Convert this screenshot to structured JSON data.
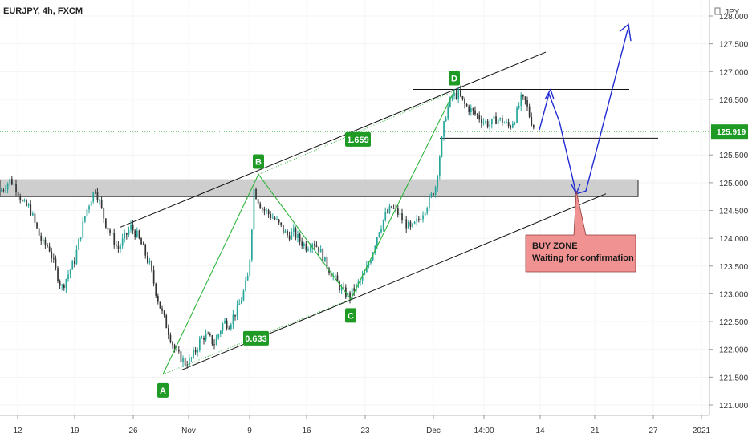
{
  "header": {
    "symbol_title": "EURJPY, 4h, FXCM",
    "currency": "JPY"
  },
  "chart_data": {
    "type": "candlestick",
    "symbol": "EURJPY",
    "timeframe": "4h",
    "source": "FXCM",
    "currency": "JPY",
    "last_price": "125.919",
    "ylim": [
      120.9,
      128.3
    ],
    "y_ticks": [
      "121.000",
      "121.500",
      "122.000",
      "122.500",
      "123.000",
      "123.500",
      "124.000",
      "124.500",
      "125.000",
      "125.500",
      "126.000",
      "126.500",
      "127.000",
      "127.500",
      "128.000"
    ],
    "x_ticks": [
      "12",
      "19",
      "26",
      "Nov",
      "9",
      "16",
      "23",
      "Dec",
      "14:00",
      "14",
      "21",
      "27",
      "2021"
    ],
    "price_path": [
      [
        0,
        124.85
      ],
      [
        6,
        124.95
      ],
      [
        12,
        125.05
      ],
      [
        20,
        124.9
      ],
      [
        28,
        124.6
      ],
      [
        36,
        124.55
      ],
      [
        44,
        124.2
      ],
      [
        52,
        123.9
      ],
      [
        60,
        123.85
      ],
      [
        68,
        123.45
      ],
      [
        76,
        123.1
      ],
      [
        84,
        123.35
      ],
      [
        92,
        123.6
      ],
      [
        100,
        124.1
      ],
      [
        106,
        124.45
      ],
      [
        112,
        124.7
      ],
      [
        118,
        124.9
      ],
      [
        124,
        124.6
      ],
      [
        130,
        124.3
      ],
      [
        138,
        124.05
      ],
      [
        146,
        123.8
      ],
      [
        154,
        124.0
      ],
      [
        162,
        124.2
      ],
      [
        170,
        124.05
      ],
      [
        178,
        123.8
      ],
      [
        186,
        123.5
      ],
      [
        194,
        123.0
      ],
      [
        200,
        122.7
      ],
      [
        206,
        122.45
      ],
      [
        212,
        122.2
      ],
      [
        218,
        121.95
      ],
      [
        224,
        121.85
      ],
      [
        230,
        121.75
      ],
      [
        236,
        121.8
      ],
      [
        242,
        121.95
      ],
      [
        248,
        122.15
      ],
      [
        254,
        122.25
      ],
      [
        260,
        122.2
      ],
      [
        266,
        122.1
      ],
      [
        272,
        122.3
      ],
      [
        278,
        122.5
      ],
      [
        284,
        122.45
      ],
      [
        290,
        122.6
      ],
      [
        296,
        122.75
      ],
      [
        302,
        123.0
      ],
      [
        308,
        123.3
      ],
      [
        312,
        123.9
      ],
      [
        315,
        124.9
      ],
      [
        319,
        124.75
      ],
      [
        325,
        124.55
      ],
      [
        333,
        124.45
      ],
      [
        341,
        124.35
      ],
      [
        349,
        124.2
      ],
      [
        357,
        124.05
      ],
      [
        365,
        124.1
      ],
      [
        373,
        123.95
      ],
      [
        381,
        123.85
      ],
      [
        389,
        123.95
      ],
      [
        397,
        123.8
      ],
      [
        405,
        123.55
      ],
      [
        413,
        123.35
      ],
      [
        421,
        123.15
      ],
      [
        429,
        123.0
      ],
      [
        435,
        122.95
      ],
      [
        441,
        123.1
      ],
      [
        447,
        123.2
      ],
      [
        455,
        123.4
      ],
      [
        463,
        123.75
      ],
      [
        471,
        124.15
      ],
      [
        479,
        124.4
      ],
      [
        487,
        124.55
      ],
      [
        495,
        124.45
      ],
      [
        503,
        124.3
      ],
      [
        511,
        124.15
      ],
      [
        519,
        124.3
      ],
      [
        527,
        124.5
      ],
      [
        535,
        124.7
      ],
      [
        542,
        124.95
      ],
      [
        548,
        125.6
      ],
      [
        554,
        126.2
      ],
      [
        562,
        126.55
      ],
      [
        570,
        126.6
      ],
      [
        578,
        126.4
      ],
      [
        586,
        126.3
      ],
      [
        594,
        126.2
      ],
      [
        602,
        126.1
      ],
      [
        610,
        126.05
      ],
      [
        618,
        126.15
      ],
      [
        626,
        126.1
      ],
      [
        634,
        126.0
      ],
      [
        642,
        126.2
      ],
      [
        648,
        126.5
      ],
      [
        654,
        126.45
      ],
      [
        660,
        126.15
      ],
      [
        666,
        125.95
      ]
    ],
    "zone": {
      "label_line1": "BUY ZONE",
      "label_line2": "Waiting for confirmation",
      "top": 125.05,
      "bottom": 124.75
    },
    "points": [
      {
        "label": "A",
        "x": 203,
        "price": 121.55
      },
      {
        "label": "B",
        "x": 322,
        "price": 125.15
      },
      {
        "label": "C",
        "x": 437,
        "price": 122.9
      },
      {
        "label": "D",
        "x": 566,
        "price": 126.65
      }
    ],
    "ratios": [
      {
        "label": "1.659",
        "x": 446,
        "price": 125.78
      },
      {
        "label": "0.633",
        "x": 319,
        "price": 122.2
      }
    ],
    "levels": {
      "resistance": 126.68,
      "support": 125.8
    },
    "colors": {
      "up": "#26a69a",
      "down": "#333333",
      "pattern": "#2db43a",
      "label_bg": "#1f9a25",
      "projection": "#1f2bd1",
      "zone_fill": "#c9c9c9",
      "zone_label_bg": "#f09292",
      "price_tag": "#1f9a25"
    }
  }
}
